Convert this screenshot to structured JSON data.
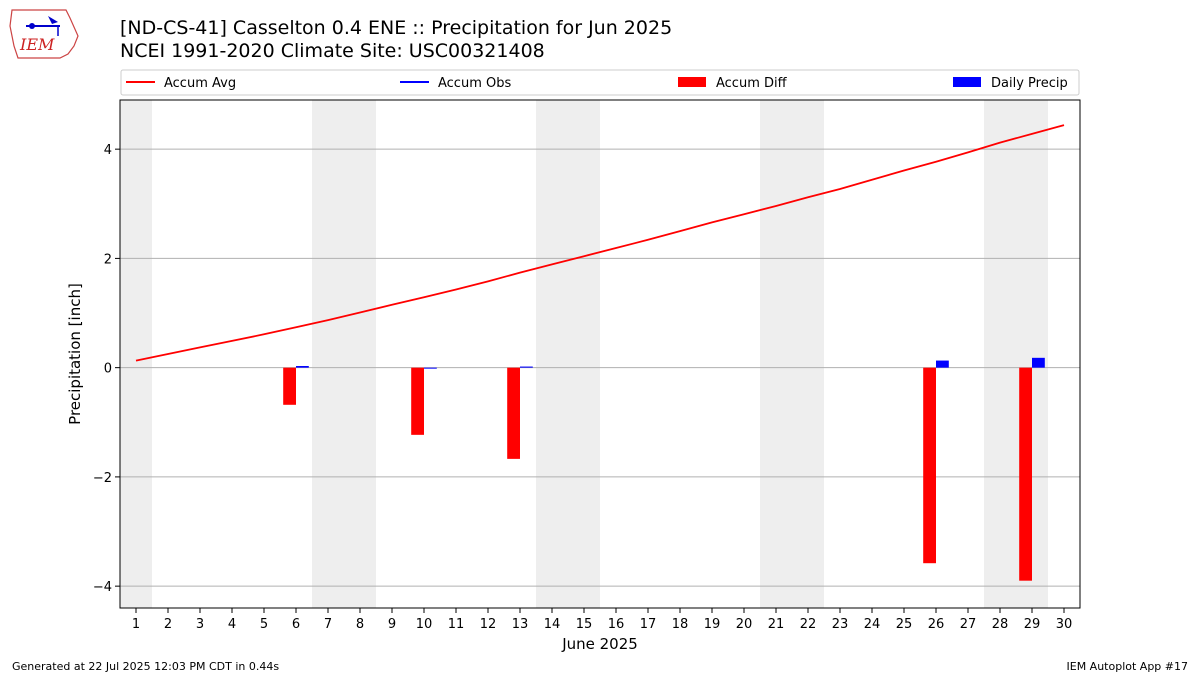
{
  "header": {
    "title_line1": "[ND-CS-41] Casselton 0.4 ENE :: Precipitation for Jun 2025",
    "title_line2": "NCEI 1991-2020 Climate Site: USC00321408"
  },
  "logo": {
    "text": "IEM"
  },
  "footer": {
    "left": "Generated at 22 Jul 2025 12:03 PM CDT in 0.44s",
    "right": "IEM Autoplot App #17"
  },
  "colors": {
    "accum_avg": "#ff0000",
    "accum_obs": "#0000ff",
    "accum_diff": "#ff0000",
    "daily_precip": "#0000ff",
    "weekend_shade": "#eeeeee",
    "grid": "#b0b0b0"
  },
  "chart_data": {
    "type": "bar",
    "xlabel": "June 2025",
    "ylabel": "Precipitation [inch]",
    "xlim": [
      0.5,
      30.5
    ],
    "ylim": [
      -4.4,
      4.9
    ],
    "x_ticks": [
      1,
      2,
      3,
      4,
      5,
      6,
      7,
      8,
      9,
      10,
      11,
      12,
      13,
      14,
      15,
      16,
      17,
      18,
      19,
      20,
      21,
      22,
      23,
      24,
      25,
      26,
      27,
      28,
      29,
      30
    ],
    "y_ticks": [
      -4,
      -2,
      0,
      2,
      4
    ],
    "y_tick_labels": [
      "−4",
      "−2",
      "0",
      "2",
      "4"
    ],
    "grid": "horizontal",
    "legend_position": "top",
    "weekend_shading": [
      [
        0.5,
        1.5
      ],
      [
        6.5,
        8.5
      ],
      [
        13.5,
        15.5
      ],
      [
        20.5,
        22.5
      ],
      [
        27.5,
        29.5
      ]
    ],
    "series": [
      {
        "name": "Accum Avg",
        "kind": "line",
        "x": [
          1,
          2,
          3,
          4,
          5,
          6,
          7,
          8,
          9,
          10,
          11,
          12,
          13,
          14,
          15,
          16,
          17,
          18,
          19,
          20,
          21,
          22,
          23,
          24,
          25,
          26,
          27,
          28,
          29,
          30
        ],
        "values": [
          0.13,
          0.25,
          0.37,
          0.49,
          0.61,
          0.74,
          0.87,
          1.01,
          1.15,
          1.29,
          1.43,
          1.58,
          1.74,
          1.89,
          2.04,
          2.19,
          2.34,
          2.5,
          2.66,
          2.81,
          2.96,
          3.12,
          3.27,
          3.44,
          3.61,
          3.77,
          3.94,
          4.12,
          4.28,
          4.44
        ]
      },
      {
        "name": "Accum Obs",
        "kind": "line",
        "x": [],
        "values": []
      },
      {
        "name": "Accum Diff",
        "kind": "bar",
        "x": [
          6,
          10,
          13,
          26,
          29
        ],
        "values": [
          -0.68,
          -1.23,
          -1.67,
          -3.58,
          -3.9
        ]
      },
      {
        "name": "Daily Precip",
        "kind": "bar",
        "x": [
          6,
          10,
          13,
          26,
          29
        ],
        "values": [
          0.03,
          0.0,
          0.02,
          0.13,
          0.18
        ]
      }
    ]
  }
}
